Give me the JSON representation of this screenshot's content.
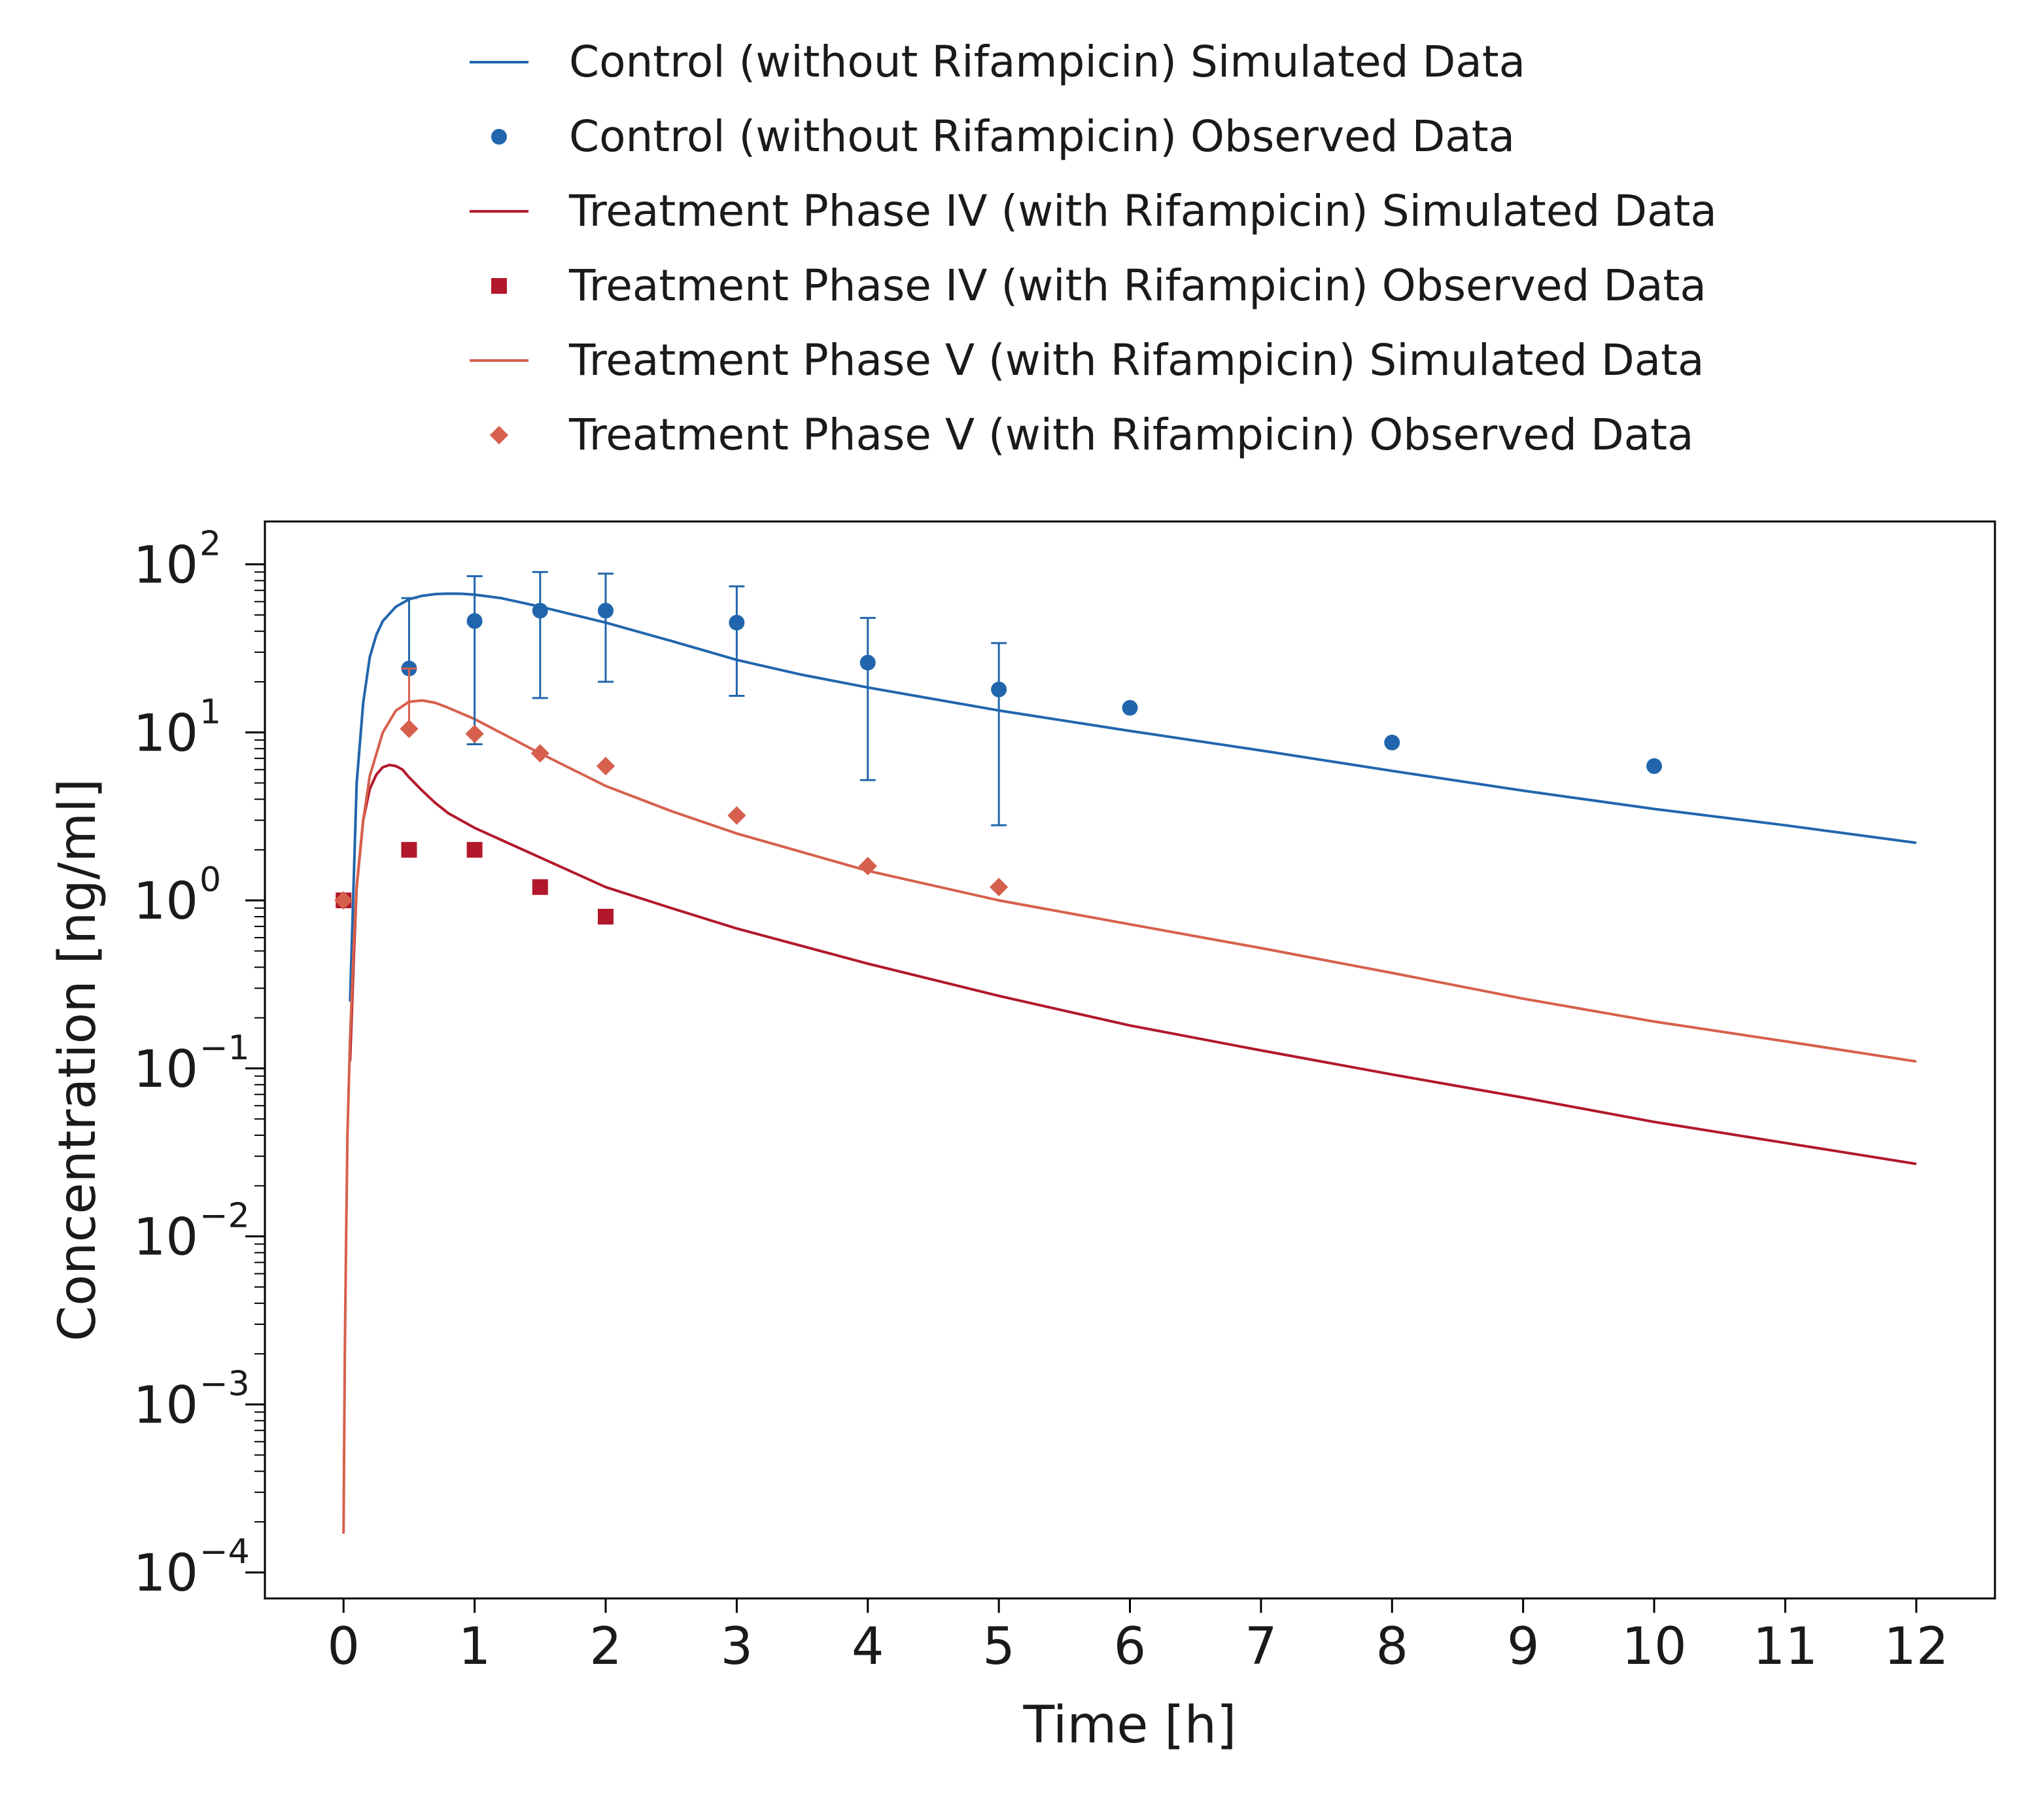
{
  "chart_data": {
    "type": "scatter",
    "xlabel": "Time [h]",
    "ylabel": "Concentration [ng/ml]",
    "y_scale": "log",
    "xlim": [
      -0.6,
      12.6
    ],
    "ylim": [
      7e-05,
      180
    ],
    "x_ticks": [
      "0",
      "1",
      "2",
      "3",
      "4",
      "5",
      "6",
      "7",
      "8",
      "9",
      "10",
      "11",
      "12"
    ],
    "y_ticks": [
      {
        "base": "10",
        "exp": "2",
        "value": 100
      },
      {
        "base": "10",
        "exp": "1",
        "value": 10
      },
      {
        "base": "10",
        "exp": "0",
        "value": 1
      },
      {
        "base": "10",
        "exp": "−1",
        "value": 0.1
      },
      {
        "base": "10",
        "exp": "−2",
        "value": 0.01
      },
      {
        "base": "10",
        "exp": "−3",
        "value": 0.001
      },
      {
        "base": "10",
        "exp": "−4",
        "value": 0.0001
      }
    ],
    "legend_position": "top",
    "grid": false,
    "series": [
      {
        "name": "Control (without Rifampicin) Simulated Data",
        "kind": "line",
        "color": "#2166ac",
        "x": [
          0.05,
          0.1,
          0.15,
          0.2,
          0.25,
          0.3,
          0.4,
          0.5,
          0.6,
          0.7,
          0.8,
          0.9,
          1.0,
          1.2,
          1.5,
          2.0,
          2.5,
          3.0,
          3.5,
          4.0,
          5.0,
          6.0,
          7.0,
          8.0,
          9.0,
          10.0,
          11.0,
          12.0
        ],
        "y": [
          0.25,
          5.0,
          15.0,
          28.0,
          38.0,
          46.0,
          56.0,
          62.0,
          65.0,
          66.5,
          67.0,
          66.8,
          66.0,
          63.0,
          56.0,
          45.0,
          35.0,
          27.0,
          22.0,
          18.5,
          13.5,
          10.2,
          7.8,
          5.9,
          4.5,
          3.5,
          2.8,
          2.2
        ]
      },
      {
        "name": "Control (without Rifampicin) Observed Data",
        "kind": "scatter",
        "marker": "circle",
        "color": "#2166ac",
        "x": [
          0.5,
          1,
          1.5,
          2,
          3,
          4,
          5,
          6,
          8,
          10
        ],
        "y": [
          24,
          46,
          53,
          53,
          45,
          26,
          18,
          14,
          8.7,
          6.3
        ],
        "err_low": [
          null,
          8.5,
          16,
          20,
          16.5,
          5.2,
          2.8,
          null,
          null,
          null
        ],
        "err_high": [
          63,
          85,
          90,
          88,
          74,
          48,
          34,
          null,
          null,
          null
        ]
      },
      {
        "name": "Treatment Phase IV (with Rifampicin) Simulated Data",
        "kind": "line",
        "color": "#b2182b",
        "x": [
          0.05,
          0.08,
          0.1,
          0.15,
          0.2,
          0.25,
          0.3,
          0.35,
          0.4,
          0.45,
          0.5,
          0.6,
          0.7,
          0.8,
          1.0,
          1.5,
          2.0,
          2.5,
          3.0,
          4.0,
          5.0,
          6.0,
          7.0,
          8.0,
          9.0,
          10.0,
          11.0,
          12.0
        ],
        "y": [
          0.11,
          0.5,
          1.2,
          3.0,
          4.6,
          5.6,
          6.2,
          6.4,
          6.3,
          6.0,
          5.4,
          4.5,
          3.8,
          3.3,
          2.7,
          1.8,
          1.2,
          0.9,
          0.68,
          0.42,
          0.27,
          0.18,
          0.128,
          0.092,
          0.067,
          0.048,
          0.036,
          0.027
        ]
      },
      {
        "name": "Treatment Phase IV (with Rifampicin) Observed Data",
        "kind": "scatter",
        "marker": "square",
        "color": "#b2182b",
        "x": [
          0,
          0.5,
          1,
          1.5,
          2
        ],
        "y": [
          1.0,
          2.0,
          2.0,
          1.2,
          0.8
        ],
        "err_low": [
          null,
          null,
          null,
          null,
          null
        ],
        "err_high": [
          null,
          null,
          null,
          null,
          null
        ]
      },
      {
        "name": "Treatment Phase V (with Rifampicin) Simulated Data",
        "kind": "line",
        "color": "#d6604d",
        "x": [
          0.0,
          0.01,
          0.02,
          0.03,
          0.05,
          0.08,
          0.1,
          0.15,
          0.2,
          0.3,
          0.4,
          0.5,
          0.6,
          0.7,
          0.8,
          1.0,
          1.5,
          2.0,
          2.5,
          3.0,
          4.0,
          5.0,
          6.0,
          7.0,
          8.0,
          9.0,
          10.0,
          11.0,
          12.0
        ],
        "y": [
          0.00017,
          0.002,
          0.01,
          0.04,
          0.15,
          0.6,
          1.2,
          3.0,
          5.5,
          10.0,
          13.5,
          15.2,
          15.5,
          15.0,
          14.0,
          12.0,
          7.5,
          4.8,
          3.4,
          2.5,
          1.5,
          1.0,
          0.72,
          0.52,
          0.37,
          0.26,
          0.19,
          0.145,
          0.11
        ]
      },
      {
        "name": "Treatment Phase V (with Rifampicin) Observed Data",
        "kind": "scatter",
        "marker": "diamond",
        "color": "#d6604d",
        "x": [
          0,
          0.5,
          1,
          1.5,
          2,
          3,
          4,
          5
        ],
        "y": [
          1.0,
          10.5,
          9.8,
          7.5,
          6.3,
          3.2,
          1.6,
          1.2
        ],
        "err_low": [
          null,
          null,
          null,
          null,
          null,
          null,
          null,
          null
        ],
        "err_high": [
          null,
          24,
          null,
          null,
          null,
          null,
          null,
          null
        ]
      }
    ]
  }
}
